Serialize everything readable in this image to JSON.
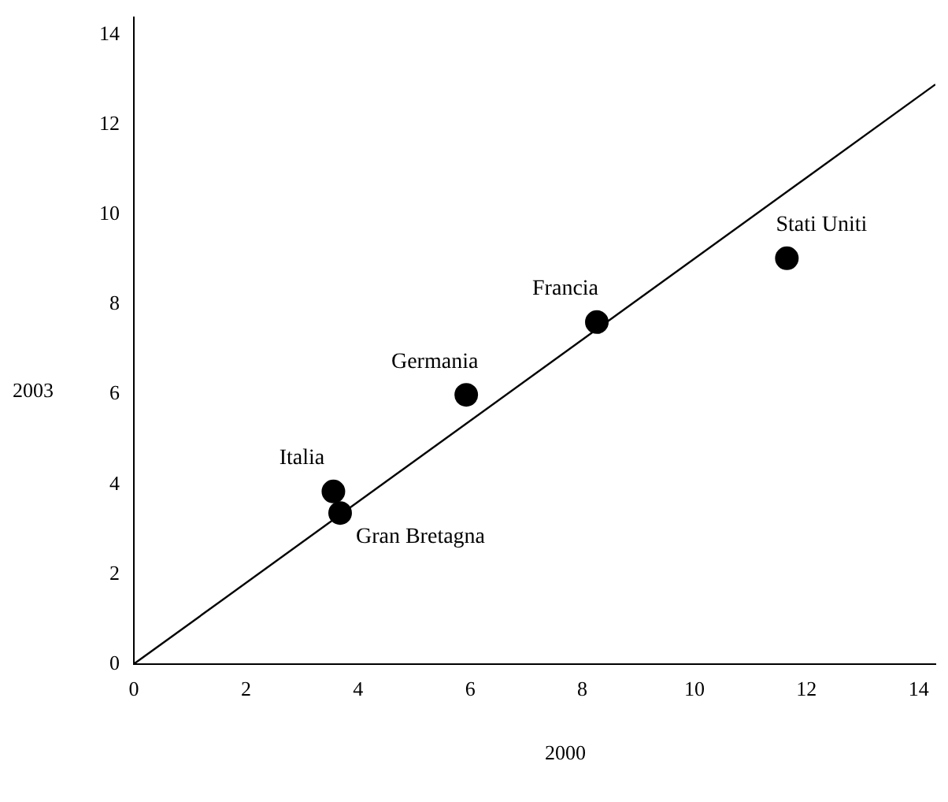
{
  "chart_data": {
    "type": "scatter",
    "xlabel": "2000",
    "ylabel": "2003",
    "xlim": [
      0,
      14.3
    ],
    "ylim": [
      0,
      14.4
    ],
    "xticks": [
      0,
      2,
      4,
      6,
      8,
      10,
      12,
      14
    ],
    "yticks": [
      0,
      2,
      4,
      6,
      8,
      10,
      12,
      14
    ],
    "grid": false,
    "legend": false,
    "marker": "circle",
    "series": [
      {
        "type": "scatter",
        "color": "#000000",
        "x": [
          3.56,
          3.68,
          5.93,
          8.26,
          11.65
        ],
        "values": [
          3.84,
          3.36,
          5.99,
          7.61,
          9.03
        ]
      },
      {
        "type": "line",
        "color": "#000000",
        "x": [
          0,
          14.3
        ],
        "values": [
          0,
          12.9
        ],
        "marker": "none",
        "line_style": "solid"
      }
    ],
    "annotations": [
      {
        "text": "Italia",
        "x": 3.56,
        "y": 3.84
      },
      {
        "text": "Gran Bretagna",
        "x": 3.68,
        "y": 3.36
      },
      {
        "text": "Germania",
        "x": 5.93,
        "y": 5.99
      },
      {
        "text": "Francia",
        "x": 8.26,
        "y": 7.61
      },
      {
        "text": "Stati Uniti",
        "x": 11.65,
        "y": 9.03
      }
    ]
  }
}
